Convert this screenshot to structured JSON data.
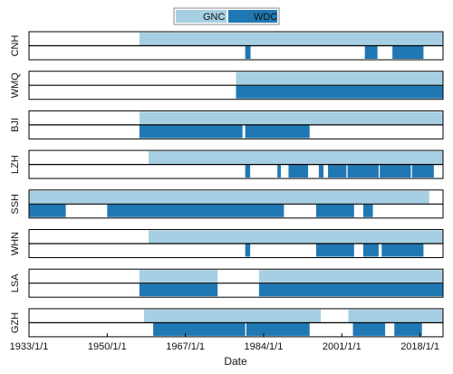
{
  "colors": {
    "GNC": "#a6cfe3",
    "WDC": "#1f78b4",
    "frame": "#000000",
    "gap": "#ffffff"
  },
  "chart_data": {
    "type": "timeline",
    "xlabel": "Date",
    "xlim": [
      "1933/1/1",
      "2023/1/1"
    ],
    "xticks": [
      "1933/1/1",
      "1950/1/1",
      "1967/1/1",
      "1984/1/1",
      "2001/1/1",
      "2018/1/1"
    ],
    "legend": {
      "placement": "top-center",
      "entries": [
        "GNC",
        "WDC"
      ]
    },
    "stations": [
      {
        "name": "CNH",
        "GNC": [
          [
            "1957/1/1",
            "2023/1/1"
          ]
        ],
        "WDC": [
          [
            "1980/1/1",
            "1981/3/1"
          ],
          [
            "2006/1/1",
            "2008/10/1"
          ],
          [
            "2012/1/1",
            "2018/10/1"
          ]
        ]
      },
      {
        "name": "WMQ",
        "GNC": [
          [
            "1978/1/1",
            "2023/1/1"
          ]
        ],
        "WDC": [
          [
            "1978/1/1",
            "2023/1/1"
          ]
        ]
      },
      {
        "name": "BJI",
        "GNC": [
          [
            "1957/1/1",
            "2023/1/1"
          ]
        ],
        "WDC": [
          [
            "1957/1/1",
            "1979/6/1"
          ],
          [
            "1980/1/1",
            "1994/1/1"
          ]
        ]
      },
      {
        "name": "LZH",
        "GNC": [
          [
            "1959/1/1",
            "2023/1/1"
          ]
        ],
        "WDC": [
          [
            "1980/1/1",
            "1981/2/1"
          ],
          [
            "1987/1/1",
            "1987/10/1"
          ],
          [
            "1989/6/1",
            "1993/9/1"
          ],
          [
            "1996/1/1",
            "1997/1/1"
          ],
          [
            "1998/1/1",
            "2002/1/1"
          ],
          [
            "2002/4/1",
            "2009/1/1"
          ],
          [
            "2009/4/1",
            "2016/1/1"
          ],
          [
            "2016/4/1",
            "2021/1/1"
          ]
        ]
      },
      {
        "name": "SSH",
        "GNC": [
          [
            "1933/1/1",
            "2020/1/1"
          ]
        ],
        "WDC": [
          [
            "1933/1/1",
            "1941/1/1"
          ],
          [
            "1950/1/1",
            "1988/6/1"
          ],
          [
            "1995/6/1",
            "2003/9/1"
          ],
          [
            "2005/9/1",
            "2007/10/1"
          ]
        ]
      },
      {
        "name": "WHN",
        "GNC": [
          [
            "1959/1/1",
            "2023/1/1"
          ]
        ],
        "WDC": [
          [
            "1980/1/1",
            "1981/2/1"
          ],
          [
            "1995/6/1",
            "2003/9/1"
          ],
          [
            "2005/9/1",
            "2009/1/1"
          ],
          [
            "2009/9/1",
            "2018/10/1"
          ]
        ]
      },
      {
        "name": "LSA",
        "GNC": [
          [
            "1957/1/1",
            "1974/1/1"
          ],
          [
            "1983/1/1",
            "2023/1/1"
          ]
        ],
        "WDC": [
          [
            "1957/1/1",
            "1974/1/1"
          ],
          [
            "1983/1/1",
            "2023/1/1"
          ]
        ]
      },
      {
        "name": "GZH",
        "GNC": [
          [
            "1958/1/1",
            "1996/6/1"
          ],
          [
            "2002/6/1",
            "2023/1/1"
          ]
        ],
        "WDC": [
          [
            "1960/1/1",
            "1980/1/1"
          ],
          [
            "1980/4/1",
            "1994/1/1"
          ],
          [
            "2003/6/1",
            "2010/6/1"
          ],
          [
            "2012/6/1",
            "2018/6/1"
          ]
        ]
      }
    ]
  }
}
